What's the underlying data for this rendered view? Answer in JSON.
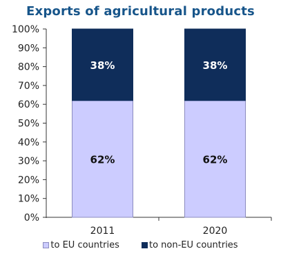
{
  "chart_data": {
    "type": "bar",
    "stacked": true,
    "percent_stacked": true,
    "title": "Exports of agricultural products",
    "categories": [
      "2011",
      "2020"
    ],
    "series": [
      {
        "name": "to EU countries",
        "values": [
          62,
          62
        ],
        "labels": [
          "62%",
          "62%"
        ],
        "color": "#ccccff",
        "stroke": "#8b8bbf",
        "label_color": "#111111"
      },
      {
        "name": "to non-EU countries",
        "values": [
          38,
          38
        ],
        "labels": [
          "38%",
          "38%"
        ],
        "color": "#0f2d5a",
        "stroke": "#0f2d5a",
        "label_color": "#ffffff"
      }
    ],
    "y_ticks": [
      "0%",
      "10%",
      "20%",
      "30%",
      "40%",
      "50%",
      "60%",
      "70%",
      "80%",
      "90%",
      "100%"
    ],
    "ylim": [
      0,
      100
    ],
    "xlabel": "",
    "ylabel": "",
    "grid": false,
    "legend_position": "bottom"
  }
}
